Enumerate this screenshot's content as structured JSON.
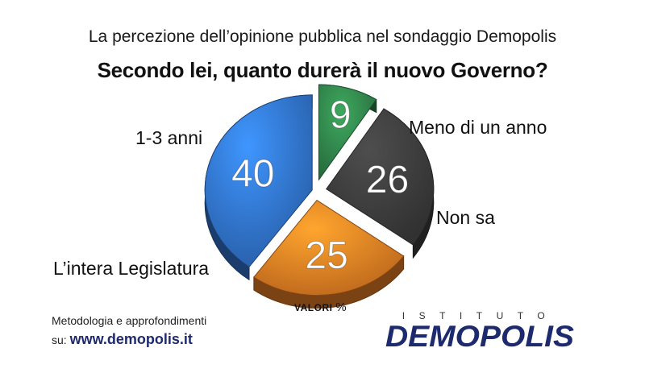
{
  "title": "La percezione dell’opinione pubblica nel sondaggio Demopolis",
  "subtitle": "Secondo lei, quanto durerà il nuovo Governo?",
  "chart_data": {
    "type": "pie",
    "title": "La percezione dell’opinione pubblica nel sondaggio Demopolis",
    "subtitle": "Secondo lei, quanto durerà il nuovo Governo?",
    "unit": "VALORI %",
    "slices": [
      {
        "label": "Meno di un anno",
        "value": 9,
        "color": "#2e7d46"
      },
      {
        "label": "Non sa",
        "value": 26,
        "color": "#3a3a3a"
      },
      {
        "label": "L’intera Legislatura",
        "value": 25,
        "color": "#e07a22"
      },
      {
        "label": "1-3 anni",
        "value": 40,
        "color": "#2f6fc6"
      }
    ]
  },
  "unit_label": "VALORI",
  "unit_symbol": "%",
  "footer": {
    "line1": "Metodologia e approfondimenti",
    "prefix": "su: ",
    "url": "www.demopolis.it"
  },
  "logo": {
    "top": "ISTITUTO",
    "name": "DEMOPOLIS",
    "color": "#1e2a6e"
  }
}
